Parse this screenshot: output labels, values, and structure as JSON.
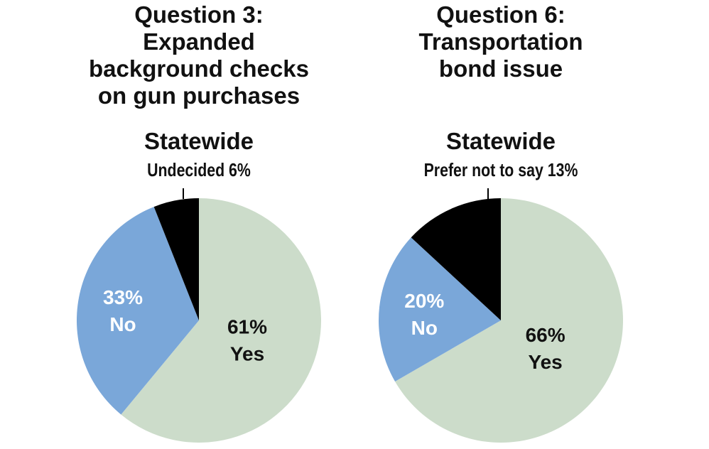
{
  "chart_data": [
    {
      "type": "pie",
      "title_lines": [
        "Question 3:",
        "Expanded",
        "background checks",
        "on gun purchases"
      ],
      "subtitle": "Statewide",
      "slices": [
        {
          "label": "Yes",
          "value": 61,
          "display": "61%",
          "color": "#ccdcca",
          "text_color": "#111111"
        },
        {
          "label": "No",
          "value": 33,
          "display": "33%",
          "color": "#7aa7d9",
          "text_color": "#ffffff"
        },
        {
          "label": "Undecided",
          "value": 6,
          "display": "Undecided 6%",
          "color": "#000000",
          "text_color": "#111111"
        }
      ]
    },
    {
      "type": "pie",
      "title_lines": [
        "Question 6:",
        "Transportation",
        "bond issue"
      ],
      "subtitle": "Statewide",
      "slices": [
        {
          "label": "Yes",
          "value": 66,
          "display": "66%",
          "color": "#ccdcca",
          "text_color": "#111111"
        },
        {
          "label": "No",
          "value": 20,
          "display": "20%",
          "color": "#7aa7d9",
          "text_color": "#ffffff"
        },
        {
          "label": "Prefer not to say",
          "value": 13,
          "display": "Prefer not to say 13%",
          "color": "#000000",
          "text_color": "#111111"
        }
      ]
    }
  ]
}
